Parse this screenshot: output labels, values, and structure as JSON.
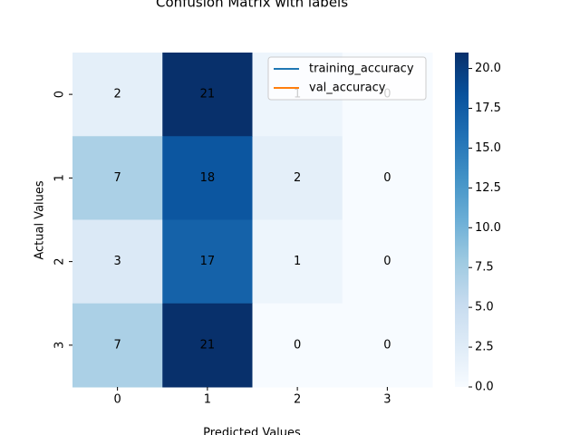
{
  "chart_data": {
    "type": "heatmap",
    "title": "Confusion Matrix with labels",
    "x_label": "Predicted Values",
    "y_label": "Actual Values",
    "x_categories": [
      "0",
      "1",
      "2",
      "3"
    ],
    "y_categories": [
      "0",
      "1",
      "2",
      "3"
    ],
    "values": [
      [
        2,
        21,
        1,
        0
      ],
      [
        7,
        18,
        2,
        0
      ],
      [
        3,
        17,
        1,
        0
      ],
      [
        7,
        21,
        0,
        0
      ]
    ],
    "colormap": "Blues",
    "clim": [
      0,
      21
    ],
    "cticks": [
      {
        "value": 0,
        "label": "0.0"
      },
      {
        "value": 2.5,
        "label": "2.5"
      },
      {
        "value": 5,
        "label": "5.0"
      },
      {
        "value": 7.5,
        "label": "7.5"
      },
      {
        "value": 10,
        "label": "10.0"
      },
      {
        "value": 12.5,
        "label": "12.5"
      },
      {
        "value": 15,
        "label": "15.0"
      },
      {
        "value": 17.5,
        "label": "17.5"
      },
      {
        "value": 20,
        "label": "20.0"
      }
    ],
    "legend": {
      "position": "upper right",
      "entries": [
        {
          "name": "training_accuracy",
          "color": "#1f77b4"
        },
        {
          "name": "val_accuracy",
          "color": "#ff7f0e"
        }
      ]
    }
  }
}
